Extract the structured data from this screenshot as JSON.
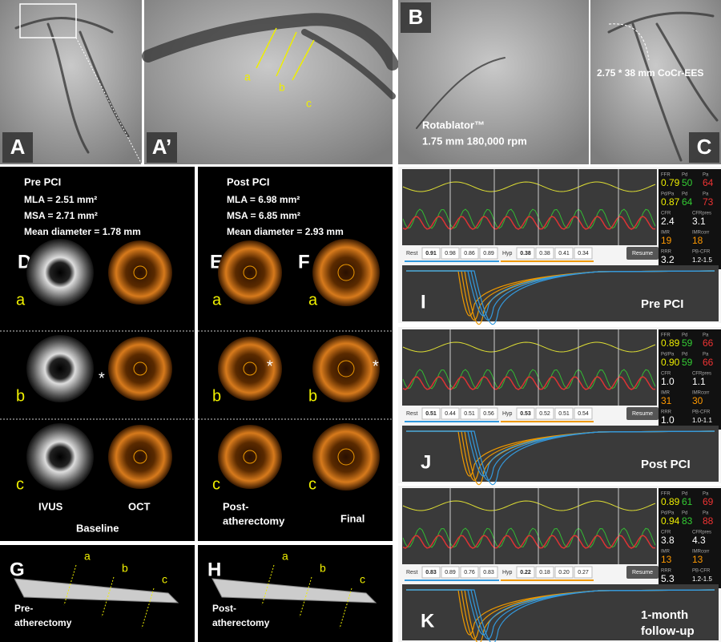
{
  "angio": {
    "A": {
      "label": "A"
    },
    "A2": {
      "label": "A’",
      "sections": [
        "a",
        "b",
        "c"
      ]
    },
    "B": {
      "label": "B",
      "lines": [
        "Rotablator™",
        "1.75 mm 180,000 rpm"
      ]
    },
    "C": {
      "label": "C",
      "text": "2.75 * 38 mm CoCr-EES"
    }
  },
  "pre_pci": {
    "title": "Pre PCI",
    "lines": [
      "MLA = 2.51 mm²",
      "MSA = 2.71 mm²",
      "Mean diameter = 1.78 mm"
    ],
    "label": "D",
    "rows": [
      "a",
      "b",
      "c"
    ],
    "captions": [
      "IVUS",
      "OCT",
      "Baseline"
    ]
  },
  "post_pci": {
    "title": "Post PCI",
    "lines": [
      "MLA = 6.98 mm²",
      "MSA = 6.85 mm²",
      "Mean diameter = 2.93 mm"
    ],
    "labels": [
      "E",
      "F"
    ],
    "rows": [
      "a",
      "b",
      "c"
    ],
    "caption_left": [
      "Post-",
      "atherectomy"
    ],
    "caption_right": "Final"
  },
  "longitudinal": [
    {
      "label": "G",
      "sections": [
        "a",
        "b",
        "c"
      ],
      "caption": [
        "Pre-",
        "atherectomy"
      ]
    },
    {
      "label": "H",
      "sections": [
        "a",
        "b",
        "c"
      ],
      "caption": [
        "Post-",
        "atherectomy"
      ]
    }
  ],
  "physiology": [
    {
      "label": "I",
      "caption": [
        "Pre PCI"
      ],
      "rest_label": "Rest",
      "rest": [
        "0.91",
        "0.98",
        "0.86",
        "0.89"
      ],
      "hyp_label": "Hyp",
      "hyp": [
        "0.38",
        "0.38",
        "0.41",
        "0.34"
      ],
      "button": "Resume",
      "readings": [
        {
          "labels": [
            "FFR",
            "Pd",
            "Pa"
          ],
          "values": [
            "0.79",
            "50",
            "64"
          ]
        },
        {
          "labels": [
            "Pd/Pa",
            "Pd",
            "Pa"
          ],
          "values": [
            "0.87",
            "64",
            "73"
          ]
        },
        {
          "labels": [
            "CFR",
            "CFRpres"
          ],
          "values": [
            "2.4",
            "3.1"
          ]
        },
        {
          "labels": [
            "IMR",
            "IMRcorr"
          ],
          "values": [
            "19",
            "18"
          ]
        },
        {
          "labels": [
            "RRR",
            "PB-CFR"
          ],
          "values": [
            "3.2",
            "1.2-1.5"
          ]
        }
      ]
    },
    {
      "label": "J",
      "caption": [
        "Post PCI"
      ],
      "rest_label": "Rest",
      "rest": [
        "0.51",
        "0.44",
        "0.51",
        "0.56"
      ],
      "hyp_label": "Hyp",
      "hyp": [
        "0.53",
        "0.52",
        "0.51",
        "0.54"
      ],
      "button": "Resume",
      "readings": [
        {
          "labels": [
            "FFR",
            "Pd",
            "Pa"
          ],
          "values": [
            "0.89",
            "59",
            "66"
          ]
        },
        {
          "labels": [
            "Pd/Pa",
            "Pd",
            "Pa"
          ],
          "values": [
            "0.90",
            "59",
            "66"
          ]
        },
        {
          "labels": [
            "CFR",
            "CFRpres"
          ],
          "values": [
            "1.0",
            "1.1"
          ]
        },
        {
          "labels": [
            "IMR",
            "IMRcorr"
          ],
          "values": [
            "31",
            "30"
          ]
        },
        {
          "labels": [
            "RRR",
            "PB-CFR"
          ],
          "values": [
            "1.0",
            "1.0-1.1"
          ]
        }
      ]
    },
    {
      "label": "K",
      "caption": [
        "1-month",
        "follow-up"
      ],
      "rest_label": "Rest",
      "rest": [
        "0.83",
        "0.89",
        "0.76",
        "0.83"
      ],
      "hyp_label": "Hyp",
      "hyp": [
        "0.22",
        "0.18",
        "0.20",
        "0.27"
      ],
      "button": "Resume",
      "readings": [
        {
          "labels": [
            "FFR",
            "Pd",
            "Pa"
          ],
          "values": [
            "0.89",
            "61",
            "69"
          ]
        },
        {
          "labels": [
            "Pd/Pa",
            "Pd",
            "Pa"
          ],
          "values": [
            "0.94",
            "83",
            "88"
          ]
        },
        {
          "labels": [
            "CFR",
            "CFRpres"
          ],
          "values": [
            "3.8",
            "4.3"
          ]
        },
        {
          "labels": [
            "IMR",
            "IMRcorr"
          ],
          "values": [
            "13",
            "13"
          ]
        },
        {
          "labels": [
            "RRR",
            "PB-CFR"
          ],
          "values": [
            "5.3",
            "1.2-1.5"
          ]
        }
      ]
    }
  ]
}
